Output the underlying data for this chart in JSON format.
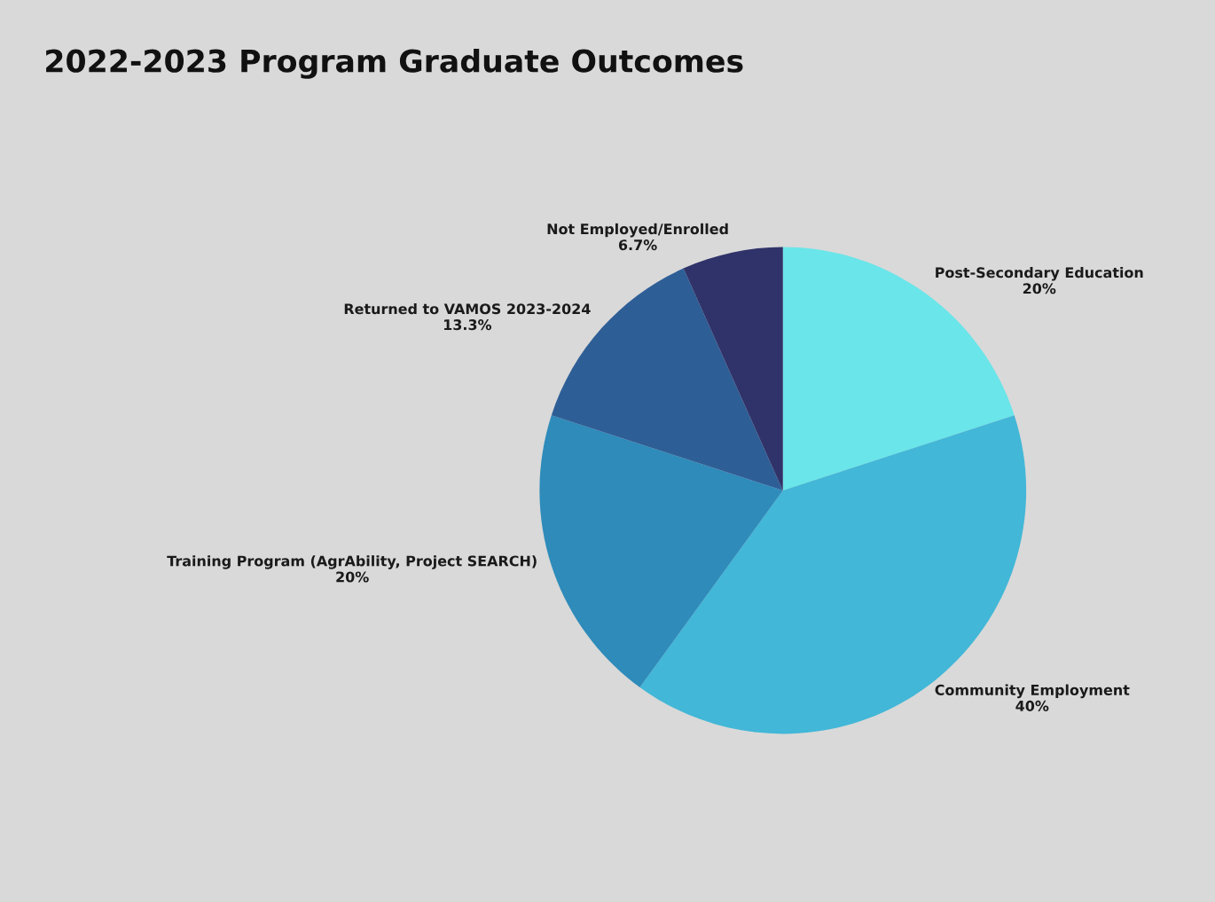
{
  "chart_data": {
    "type": "pie",
    "title": "2022-2023 Program Graduate Outcomes",
    "categories": [
      "Post-Secondary Education",
      "Community Employment",
      "Training Program (AgrAbility, Project SEARCH)",
      "Returned to VAMOS 2023-2024",
      "Not Employed/Enrolled"
    ],
    "values": [
      20,
      40,
      20,
      13.3,
      6.7
    ],
    "value_labels": [
      "20%",
      "40%",
      "20%",
      "13.3%",
      "6.7%"
    ],
    "colors": [
      "#6ae5e9",
      "#42b7d7",
      "#2e8bba",
      "#2e5e96",
      "#303369"
    ],
    "legend": false
  }
}
